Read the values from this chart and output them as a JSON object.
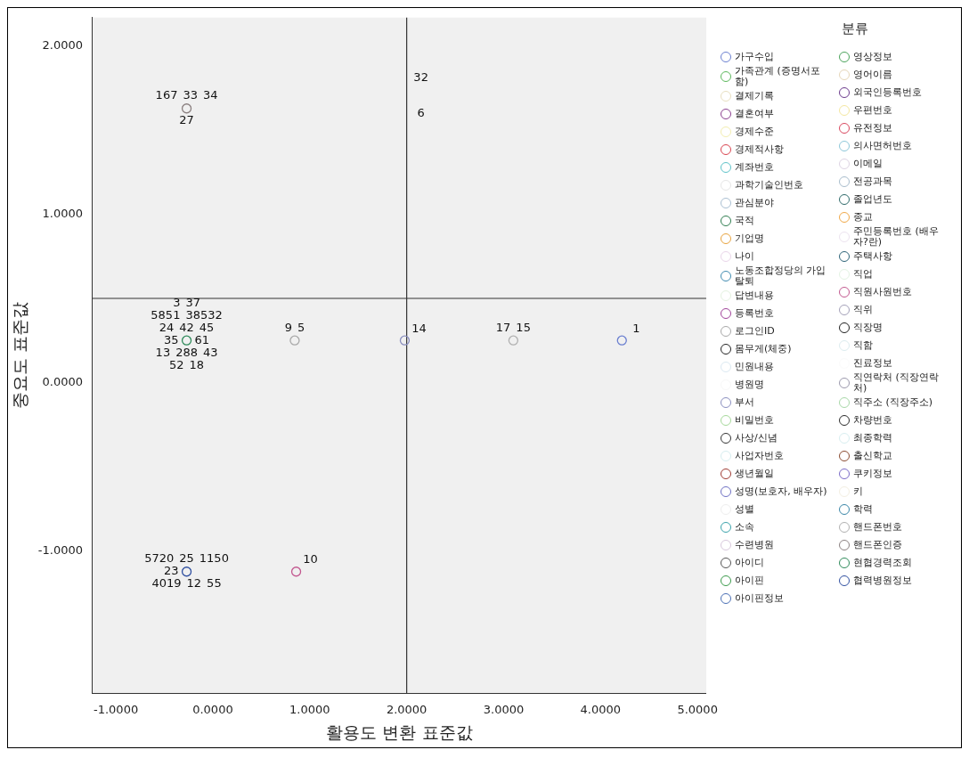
{
  "chart_data": {
    "type": "scatter",
    "xlabel": "활용도 변환 표준값",
    "ylabel": "중요도 표준값",
    "legend_title": "분류",
    "legend": "right",
    "marker": "circle",
    "grid": false,
    "xlim": [
      -1.24,
      5.09
    ],
    "ylim": [
      -1.85,
      2.17
    ],
    "xticks": [
      {
        "value": -1,
        "label": "-1.0000"
      },
      {
        "value": 0,
        "label": "0.0000"
      },
      {
        "value": 1,
        "label": "1.0000"
      },
      {
        "value": 2,
        "label": "2.0000"
      },
      {
        "value": 3,
        "label": "3.0000"
      },
      {
        "value": 4,
        "label": "4.0000"
      },
      {
        "value": 5,
        "label": "5.0000"
      }
    ],
    "yticks": [
      {
        "value": -1,
        "label": "-1.0000"
      },
      {
        "value": 0,
        "label": "0.0000"
      },
      {
        "value": 1,
        "label": "1.0000"
      },
      {
        "value": 2,
        "label": "2.0000"
      }
    ],
    "ref_lines": [
      {
        "axis": "x",
        "value": 2,
        "color": "#333333"
      },
      {
        "axis": "y",
        "value": 0.5,
        "color": "#333333"
      }
    ],
    "series": [
      {
        "name": "가구수입",
        "color": "#6a7fd0",
        "x": [
          4.22
        ],
        "values": [
          0.25
        ]
      },
      {
        "name": "가족관계 (증명서포함)",
        "color": "#5cb85c"
      },
      {
        "name": "결제기록",
        "color": "#e8dfc0"
      },
      {
        "name": "결혼여부",
        "color": "#8a3f8f"
      },
      {
        "name": "경제수준",
        "color": "#f3eeb0"
      },
      {
        "name": "경제적사항",
        "color": "#d9434f"
      },
      {
        "name": "계좌번호",
        "color": "#5ec3c9"
      },
      {
        "name": "과학기술인번호",
        "color": "#e6e6e6"
      },
      {
        "name": "관심분야",
        "color": "#a9bfd2"
      },
      {
        "name": "국적",
        "color": "#2e7d4f"
      },
      {
        "name": "기업명",
        "color": "#e8a33d"
      },
      {
        "name": "나이",
        "color": "#ead6ea"
      },
      {
        "name": "노동조합정당의 가입탈퇴",
        "color": "#3f8bb0"
      },
      {
        "name": "답변내용",
        "color": "#e4f2e0"
      },
      {
        "name": "등록번호",
        "color": "#a0449a"
      },
      {
        "name": "로그인ID",
        "color": "#a8a8a8",
        "x": [
          0.845
        ],
        "values": [
          0.25
        ]
      },
      {
        "name": "몸무게(체중)",
        "color": "#222222"
      },
      {
        "name": "민원내용",
        "color": "#dbe9f2"
      },
      {
        "name": "병원명",
        "color": "#f8f8f8"
      },
      {
        "name": "부서",
        "color": "#8a8fbf",
        "x": [
          1.98
        ],
        "values": [
          0.25
        ]
      },
      {
        "name": "비밀번호",
        "color": "#a6d99a"
      },
      {
        "name": "사상/신념",
        "color": "#333333"
      },
      {
        "name": "사업자번호",
        "color": "#d6eef0"
      },
      {
        "name": "생년월일",
        "color": "#9e3a32"
      },
      {
        "name": "성명(보호자, 배우자)",
        "color": "#6f71c4"
      },
      {
        "name": "성별",
        "color": "#eeeeee"
      },
      {
        "name": "소속",
        "color": "#3aa3ab"
      },
      {
        "name": "수련병원",
        "color": "#d8c8dc"
      },
      {
        "name": "아이디",
        "color": "#555555"
      },
      {
        "name": "아이핀",
        "color": "#3a9a4a"
      },
      {
        "name": "아이핀정보",
        "color": "#4a6fb5"
      },
      {
        "name": "영상정보",
        "color": "#4aa35a"
      },
      {
        "name": "영어이름",
        "color": "#e6d6b8"
      },
      {
        "name": "외국인등록번호",
        "color": "#6b3a8c"
      },
      {
        "name": "우편번호",
        "color": "#f4e7a0"
      },
      {
        "name": "유전정보",
        "color": "#d9475e"
      },
      {
        "name": "의사면허번호",
        "color": "#8cc7d9"
      },
      {
        "name": "이메일",
        "color": "#ddd3e3"
      },
      {
        "name": "전공과목",
        "color": "#a8bccc"
      },
      {
        "name": "졸업년도",
        "color": "#2f6a6a"
      },
      {
        "name": "종교",
        "color": "#f0a848"
      },
      {
        "name": "주민등록번호 (배우자?란)",
        "color": "#ece3ef"
      },
      {
        "name": "주택사항",
        "color": "#2d6478"
      },
      {
        "name": "직업",
        "color": "#e3f3e3"
      },
      {
        "name": "직원사원번호",
        "color": "#c2578f",
        "x": [
          0.86
        ],
        "values": [
          -1.125
        ]
      },
      {
        "name": "직위",
        "color": "#a3a0b8"
      },
      {
        "name": "직장명",
        "color": "#1e1e1e"
      },
      {
        "name": "직함",
        "color": "#dcecef"
      },
      {
        "name": "진료정보",
        "color": "#fbfbfb"
      },
      {
        "name": "직연락처 (직장연락처)",
        "color": "#9a98ac"
      },
      {
        "name": "직주소 (직장주소)",
        "color": "#a8d8a8"
      },
      {
        "name": "차량번호",
        "color": "#2a2a2a"
      },
      {
        "name": "최종학력",
        "color": "#d8eef0"
      },
      {
        "name": "출신학교",
        "color": "#8a4a30"
      },
      {
        "name": "쿠키정보",
        "color": "#7a6ac8"
      },
      {
        "name": "키",
        "color": "#f3efe2"
      },
      {
        "name": "학력",
        "color": "#3a86a8"
      },
      {
        "name": "핸드폰번호",
        "color": "#b0b0b0",
        "x": [
          3.1
        ],
        "values": [
          0.25
        ]
      },
      {
        "name": "핸드폰인증",
        "color": "#8a7f7f",
        "x": [
          -0.27
        ],
        "values": [
          1.63
        ]
      },
      {
        "name": "현협경력조회",
        "color": "#2e8a5a",
        "x": [
          -0.27
        ],
        "values": [
          0.25
        ]
      },
      {
        "name": "협력병원정보",
        "color": "#2f4fa0",
        "x": [
          -0.27
        ],
        "values": [
          -1.125
        ]
      }
    ],
    "annotations": [
      {
        "text": "167",
        "x": -0.27,
        "y": 1.63
      },
      {
        "text": "33",
        "x": -0.27,
        "y": 1.63
      },
      {
        "text": "34",
        "x": -0.27,
        "y": 1.63
      },
      {
        "text": "27",
        "x": -0.27,
        "y": 1.63
      },
      {
        "text": "32",
        "x": 2,
        "y": 1.74
      },
      {
        "text": "6",
        "x": 2,
        "y": 1.53
      },
      {
        "text": "24",
        "x": -0.27,
        "y": 0.25
      },
      {
        "text": "42",
        "x": -0.27,
        "y": 0.25
      },
      {
        "text": "45",
        "x": -0.27,
        "y": 0.25
      },
      {
        "text": "13",
        "x": -0.27,
        "y": 0.25
      },
      {
        "text": "288",
        "x": -0.27,
        "y": 0.25
      },
      {
        "text": "43",
        "x": -0.27,
        "y": 0.25
      },
      {
        "text": "35",
        "x": -0.27,
        "y": 0.25
      },
      {
        "text": "61",
        "x": -0.27,
        "y": 0.25
      },
      {
        "text": "5851",
        "x": -0.27,
        "y": 0.25
      },
      {
        "text": "38532",
        "x": -0.27,
        "y": 0.25
      },
      {
        "text": "52",
        "x": -0.27,
        "y": 0.25
      },
      {
        "text": "18",
        "x": -0.27,
        "y": 0.25
      },
      {
        "text": "3",
        "x": -0.27,
        "y": 0.25
      },
      {
        "text": "37",
        "x": -0.27,
        "y": 0.25
      },
      {
        "text": "9",
        "x": 0.845,
        "y": 0.25
      },
      {
        "text": "5",
        "x": 0.845,
        "y": 0.25
      },
      {
        "text": "14",
        "x": 1.98,
        "y": 0.25
      },
      {
        "text": "17",
        "x": 3.1,
        "y": 0.25
      },
      {
        "text": "15",
        "x": 3.1,
        "y": 0.25
      },
      {
        "text": "1",
        "x": 4.22,
        "y": 0.25
      },
      {
        "text": "5720",
        "x": -0.27,
        "y": -1.125
      },
      {
        "text": "25",
        "x": -0.27,
        "y": -1.125
      },
      {
        "text": "1150",
        "x": -0.27,
        "y": -1.125
      },
      {
        "text": "4019",
        "x": -0.27,
        "y": -1.125
      },
      {
        "text": "12",
        "x": -0.27,
        "y": -1.125
      },
      {
        "text": "55",
        "x": -0.27,
        "y": -1.125
      },
      {
        "text": "23",
        "x": -0.27,
        "y": -1.125
      },
      {
        "text": "10",
        "x": 0.86,
        "y": -1.125
      }
    ]
  }
}
